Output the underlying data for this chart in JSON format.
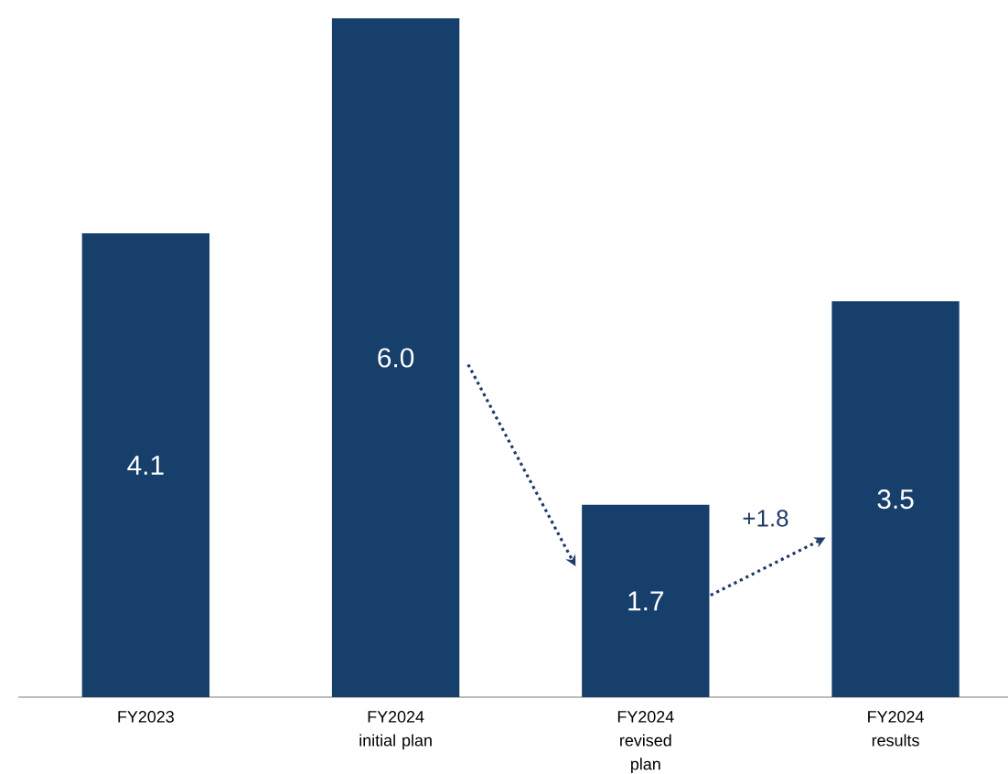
{
  "chart_data": {
    "type": "bar",
    "categories": [
      "FY2023",
      "FY2024 initial plan",
      "FY2024 revised plan",
      "FY2024 results"
    ],
    "values": [
      4.1,
      6.0,
      1.7,
      3.5
    ],
    "color": "#173f6b",
    "value_labels": [
      "4.1",
      "6.0",
      "1.7",
      "3.5"
    ],
    "annotations": [
      "+1.8"
    ]
  }
}
